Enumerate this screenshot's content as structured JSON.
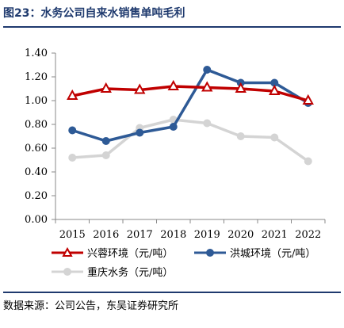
{
  "header": {
    "title": "图23：水务公司自来水销售单吨毛利"
  },
  "footer": {
    "source": "数据来源：公司公告，东吴证券研究所"
  },
  "chart_data": {
    "type": "line",
    "title": "图23：水务公司自来水销售单吨毛利",
    "xlabel": "",
    "ylabel": "",
    "x": [
      "2015",
      "2016",
      "2017",
      "2018",
      "2019",
      "2020",
      "2021",
      "2022"
    ],
    "ylim": [
      0,
      1.4
    ],
    "yticks": [
      "0.00",
      "0.20",
      "0.40",
      "0.60",
      "0.80",
      "1.00",
      "1.20",
      "1.40"
    ],
    "grid": false,
    "legend_position": "bottom",
    "series": [
      {
        "name": "兴蓉环境（元/吨）",
        "values": [
          1.04,
          1.1,
          1.09,
          1.12,
          1.11,
          1.1,
          1.08,
          1.0
        ],
        "color": "#c00000",
        "marker": "triangle"
      },
      {
        "name": "洪城环境（元/吨）",
        "values": [
          0.75,
          0.66,
          0.73,
          0.78,
          1.26,
          1.15,
          1.15,
          0.98
        ],
        "color": "#2e5a96",
        "marker": "circle"
      },
      {
        "name": "重庆水务（元/吨）",
        "values": [
          0.52,
          0.54,
          0.77,
          0.84,
          0.81,
          0.7,
          0.69,
          0.49
        ],
        "color": "#d4d4d4",
        "marker": "circle"
      }
    ]
  }
}
